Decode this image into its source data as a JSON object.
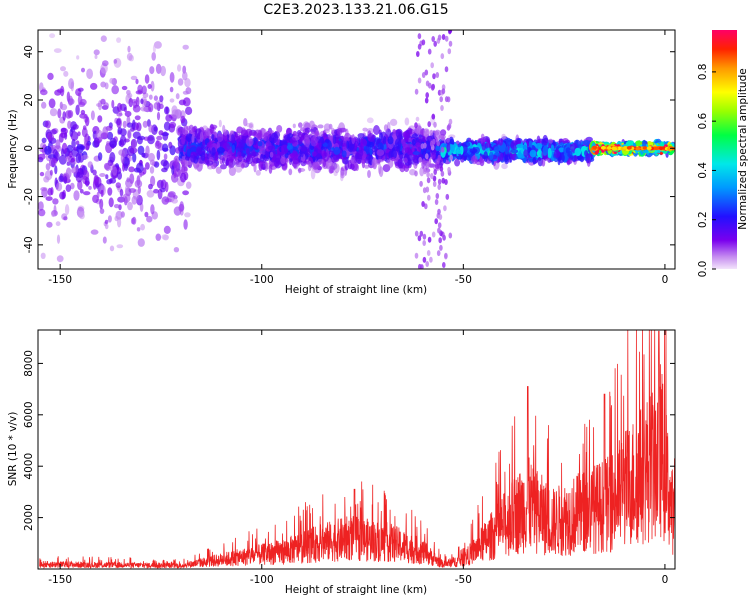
{
  "title": "C2E3.2023.133.21.06.G15",
  "chart_data": [
    {
      "type": "heatmap",
      "title": "C2E3.2023.133.21.06.G15",
      "xlabel": "Height of straight line (km)",
      "ylabel": "Frequency (Hz)",
      "xlim": [
        -155.5,
        2.5
      ],
      "ylim": [
        -50,
        49
      ],
      "xticks": [
        -150,
        -100,
        -50,
        0
      ],
      "yticks": [
        -40,
        -20,
        0,
        20,
        40
      ],
      "colorbar": {
        "label": "Normalized spectral amplitude",
        "range": [
          0,
          0.97
        ],
        "ticks": [
          0.0,
          0.2,
          0.4,
          0.6,
          0.8
        ],
        "colormap": "rainbow (violet to red)"
      },
      "bands": [
        {
          "x_range": [
            -155,
            -118
          ],
          "center_hz": 0,
          "spread_hz": 45,
          "amplitude": 0.15
        },
        {
          "x_range": [
            -120,
            -55
          ],
          "center_hz": 0,
          "spread_hz": 10,
          "amplitude": 0.22
        },
        {
          "x_range": [
            -55,
            -18
          ],
          "center_hz": -1,
          "spread_hz": 5,
          "amplitude": 0.38
        },
        {
          "x_range": [
            -18,
            2
          ],
          "center_hz": 0,
          "spread_hz": 2,
          "amplitude": 0.9
        }
      ],
      "grid": false
    },
    {
      "type": "line",
      "xlabel": "Height of straight line (km)",
      "ylabel": "SNR (10 * v/v)",
      "xlim": [
        -155.5,
        2.5
      ],
      "ylim": [
        0,
        9300
      ],
      "xticks": [
        -150,
        -100,
        -50,
        0
      ],
      "yticks": [
        2000,
        4000,
        6000,
        8000
      ],
      "color": "#ee2222",
      "envelope": [
        {
          "x": -155,
          "y": 300
        },
        {
          "x": -120,
          "y": 220
        },
        {
          "x": -110,
          "y": 600
        },
        {
          "x": -95,
          "y": 1100
        },
        {
          "x": -85,
          "y": 1700
        },
        {
          "x": -78,
          "y": 2000
        },
        {
          "x": -68,
          "y": 1700
        },
        {
          "x": -60,
          "y": 1100
        },
        {
          "x": -55,
          "y": 300
        },
        {
          "x": -50,
          "y": 600
        },
        {
          "x": -44,
          "y": 1900
        },
        {
          "x": -38,
          "y": 3300
        },
        {
          "x": -34,
          "y": 4200
        },
        {
          "x": -28,
          "y": 3000
        },
        {
          "x": -20,
          "y": 3700
        },
        {
          "x": -14,
          "y": 4200
        },
        {
          "x": -10,
          "y": 5200
        },
        {
          "x": -6,
          "y": 6100
        },
        {
          "x": -3,
          "y": 6800
        },
        {
          "x": -1,
          "y": 7800
        },
        {
          "x": 1,
          "y": 5000
        },
        {
          "x": 2.5,
          "y": 2800
        }
      ],
      "peaks": [
        {
          "x": -77,
          "y": 3100
        },
        {
          "x": -34,
          "y": 7100
        },
        {
          "x": -15,
          "y": 6800
        },
        {
          "x": -1.5,
          "y": 9250
        }
      ],
      "grid": false
    }
  ]
}
